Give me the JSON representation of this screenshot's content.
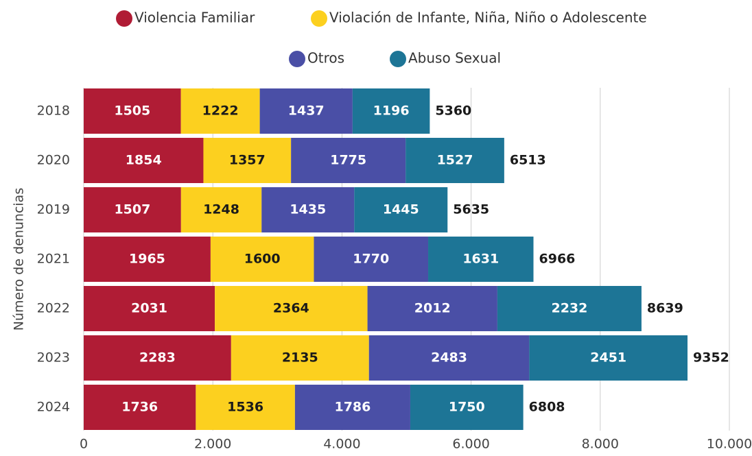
{
  "chart_data": {
    "type": "bar",
    "orientation": "horizontal",
    "stacked": true,
    "ylabel": "Número de denuncias",
    "categories": [
      "2018",
      "2020",
      "2019",
      "2021",
      "2022",
      "2023",
      "2024"
    ],
    "series": [
      {
        "name": "Violencia Familiar",
        "color": "#b01c35",
        "values": [
          1505,
          1854,
          1507,
          1965,
          2031,
          2283,
          1736
        ]
      },
      {
        "name": "Violación de Infante, Niña, Niño o Adolescente",
        "color": "#fcd01f",
        "values": [
          1222,
          1357,
          1248,
          1600,
          2364,
          2135,
          1536
        ]
      },
      {
        "name": "Otros",
        "color": "#4a4fa6",
        "values": [
          1437,
          1775,
          1435,
          1770,
          2012,
          2483,
          1786
        ]
      },
      {
        "name": "Abuso Sexual",
        "color": "#1d7596",
        "values": [
          1196,
          1527,
          1445,
          1631,
          2232,
          2451,
          1750
        ]
      }
    ],
    "totals": [
      5360,
      6513,
      5635,
      6966,
      8639,
      9352,
      6808
    ],
    "xlim": [
      0,
      10000
    ],
    "xticks": [
      0,
      {
        "value": 2000,
        "label": "2.000"
      },
      {
        "value": 4000,
        "label": "4.000"
      },
      {
        "value": 6000,
        "label": "6.000"
      },
      {
        "value": 8000,
        "label": "8.000"
      },
      {
        "value": 10000,
        "label": "10.000"
      }
    ],
    "grid": true
  }
}
